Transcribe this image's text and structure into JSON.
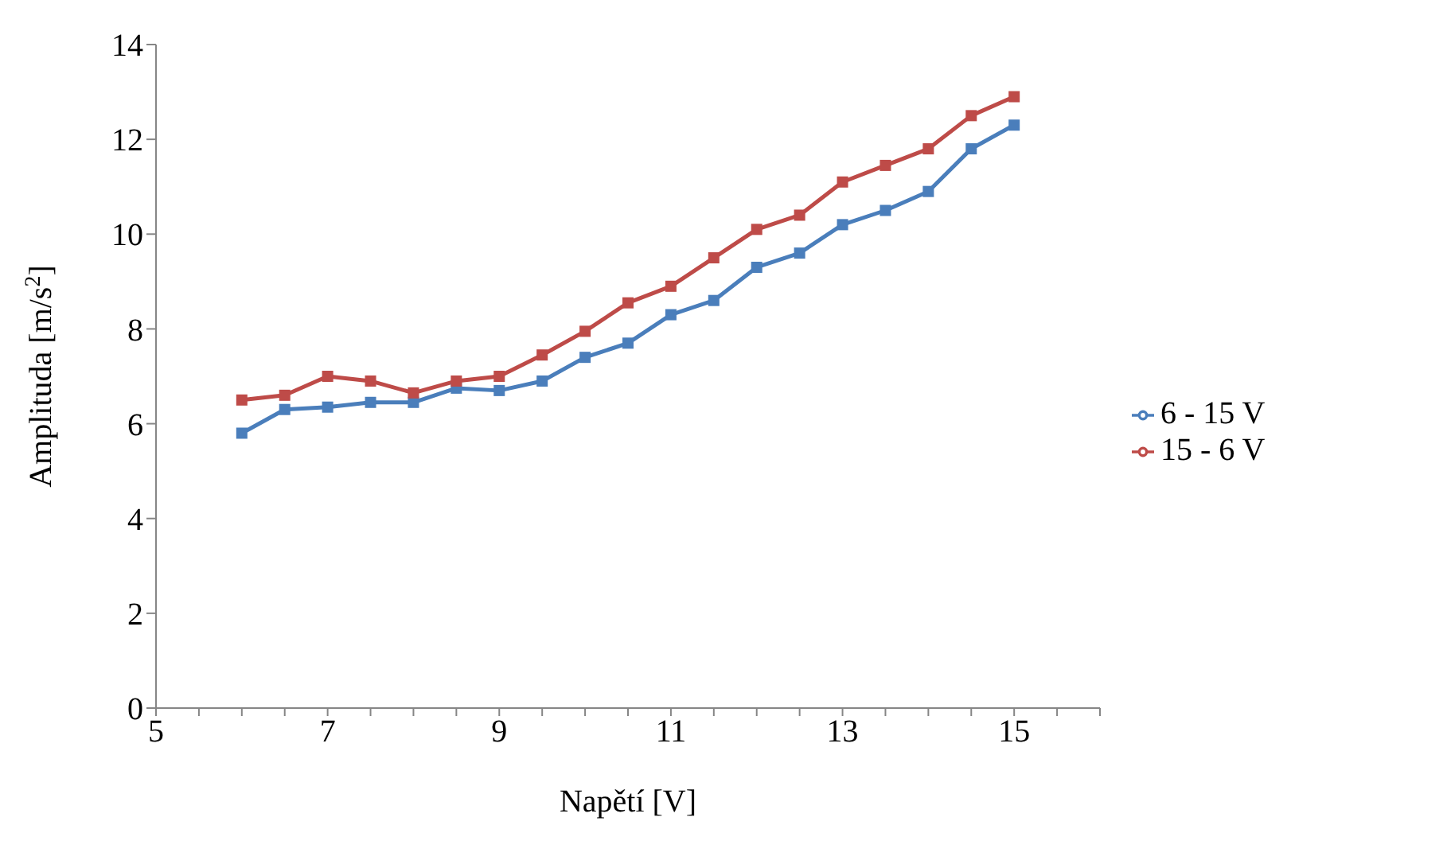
{
  "chart_data": {
    "type": "line",
    "xlabel": "Napětí [V]",
    "ylabel": "Amplituda [m/s$^{2}$]",
    "x": [
      6,
      6.5,
      7,
      7.5,
      8,
      8.5,
      9,
      9.5,
      10,
      10.5,
      11,
      11.5,
      12,
      12.5,
      13,
      13.5,
      14,
      14.5,
      15
    ],
    "series": [
      {
        "name": "6 - 15 V",
        "color": "#4a7ebb",
        "values": [
          5.8,
          6.3,
          6.35,
          6.45,
          6.45,
          6.75,
          6.7,
          6.9,
          7.4,
          7.7,
          8.3,
          8.6,
          9.3,
          9.6,
          10.2,
          10.5,
          10.9,
          11.8,
          12.3
        ]
      },
      {
        "name": "15 - 6 V",
        "color": "#be4b48",
        "values": [
          6.5,
          6.6,
          7,
          6.9,
          6.65,
          6.9,
          7,
          7.45,
          7.95,
          8.55,
          8.9,
          9.5,
          10.1,
          10.4,
          11.1,
          11.45,
          11.8,
          12.5,
          12.9
        ]
      }
    ],
    "xlim": [
      5,
      16
    ],
    "xticks": [
      5,
      {
        "value": 5.5,
        "label": null
      },
      {
        "value": 6,
        "label": null
      },
      {
        "value": 6.5,
        "label": null
      },
      7,
      {
        "value": 7.5,
        "label": null
      },
      {
        "value": 8,
        "label": null
      },
      {
        "value": 8.5,
        "label": null
      },
      9,
      {
        "value": 9.5,
        "label": null
      },
      {
        "value": 10,
        "label": null
      },
      {
        "value": 10.5,
        "label": null
      },
      11,
      {
        "value": 11.5,
        "label": null
      },
      {
        "value": 12,
        "label": null
      },
      {
        "value": 12.5,
        "label": null
      },
      13,
      {
        "value": 13.5,
        "label": null
      },
      {
        "value": 14,
        "label": null
      },
      {
        "value": 14.5,
        "label": null
      },
      15,
      {
        "value": 15.5,
        "label": null
      },
      {
        "value": 16,
        "label": null
      }
    ],
    "ylim": [
      0,
      14
    ],
    "yticks": [
      0,
      2,
      4,
      6,
      8,
      10,
      12,
      14
    ],
    "grid": false,
    "legend": "right",
    "marker": "square",
    "line_style": "solid"
  }
}
